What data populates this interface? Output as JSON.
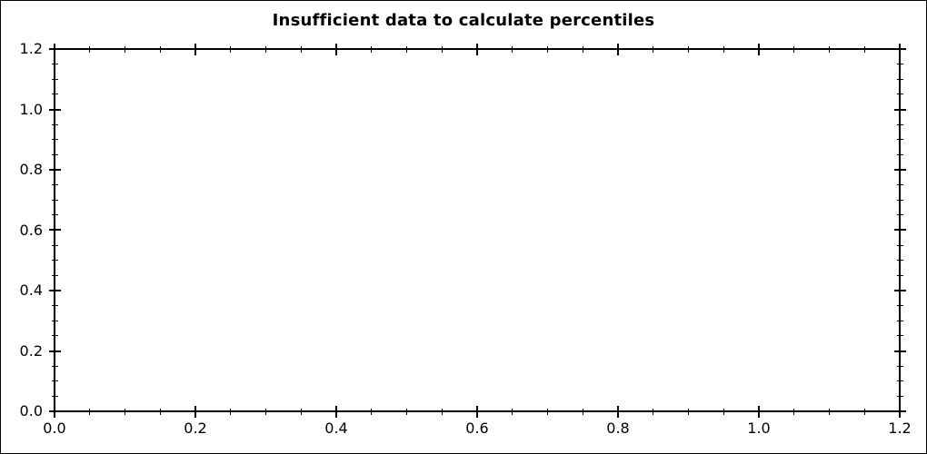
{
  "chart_data": {
    "type": "line",
    "title": "Insufficient data to calculate percentiles",
    "xlabel": "",
    "ylabel": "",
    "xlim": [
      0,
      1.2
    ],
    "ylim": [
      0,
      1.2
    ],
    "x_major_ticks": [
      0,
      0.2,
      0.4,
      0.6,
      0.8,
      1.0,
      1.2
    ],
    "x_tick_labels": [
      "0.0",
      "0.2",
      "0.4",
      "0.6",
      "0.8",
      "1.0",
      "1.2"
    ],
    "y_major_ticks": [
      0,
      0.2,
      0.4,
      0.6,
      0.8,
      1.0,
      1.2
    ],
    "y_tick_labels": [
      "0.0",
      "0.2",
      "0.4",
      "0.6",
      "0.8",
      "1.0",
      "1.2"
    ],
    "minor_tick_step": 0.05,
    "grid": false,
    "legend": false,
    "series": []
  },
  "colors": {
    "background": "#ffffff",
    "axis": "#000000",
    "text": "#000000"
  }
}
